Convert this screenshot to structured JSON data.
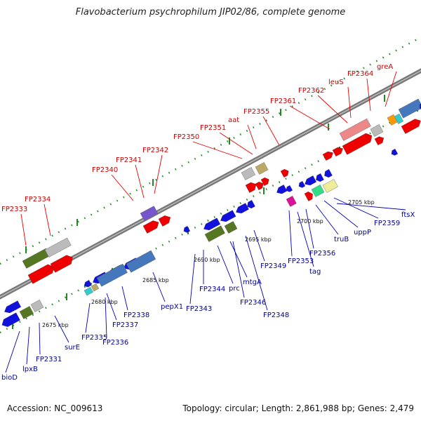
{
  "header": {
    "title": "Flavobacterium psychrophilum JIP02/86, complete genome"
  },
  "footer": {
    "accession": "Accession: NC_009613",
    "summary": "Topology: circular; Length: 2,861,988 bp; Genes: 2,479"
  },
  "colors": {
    "backbone": "#888888",
    "dots_top": "#228822",
    "dots_bottom": "#228822",
    "label_forward": "#cc0000",
    "label_reverse": "#000099",
    "gene_red": "#ee0000",
    "gene_blue": "#1111dd",
    "gene_steel": "#4477bb",
    "gene_olive": "#557722",
    "gene_grey": "#bbbbbb",
    "gene_pink": "#ee8888",
    "gene_tan": "#bbaa66",
    "gene_purple": "#7755cc",
    "gene_magenta": "#dd1199",
    "gene_cyan": "#33cccc",
    "gene_green": "#33dd88",
    "gene_khaki": "#eeee99",
    "gene_orange": "#ff9900"
  },
  "kbp_ticks": [
    "2675 kbp",
    "2680 kbp",
    "2685 kbp",
    "2690 kbp",
    "2695 kbp",
    "2700 kbp",
    "2705 kbp"
  ],
  "forward_labels": [
    "FP2333",
    "FP2334",
    "FP2340",
    "FP2341",
    "FP2342",
    "FP2350",
    "FP2351",
    "aat",
    "FP2355",
    "FP2361",
    "FP2362",
    "leuS",
    "FP2364",
    "greA"
  ],
  "reverse_labels": [
    "bioD",
    "lpxB",
    "FP2331",
    "surE",
    "FP2335",
    "FP2336",
    "FP2337",
    "FP2338",
    "pepX1",
    "FP2343",
    "FP2344",
    "prc",
    "mtgA",
    "FP2346",
    "FP2348",
    "FP2349",
    "FP2353",
    "tag",
    "FP2356",
    "truB",
    "uppP",
    "FP2359",
    "ftsX"
  ]
}
